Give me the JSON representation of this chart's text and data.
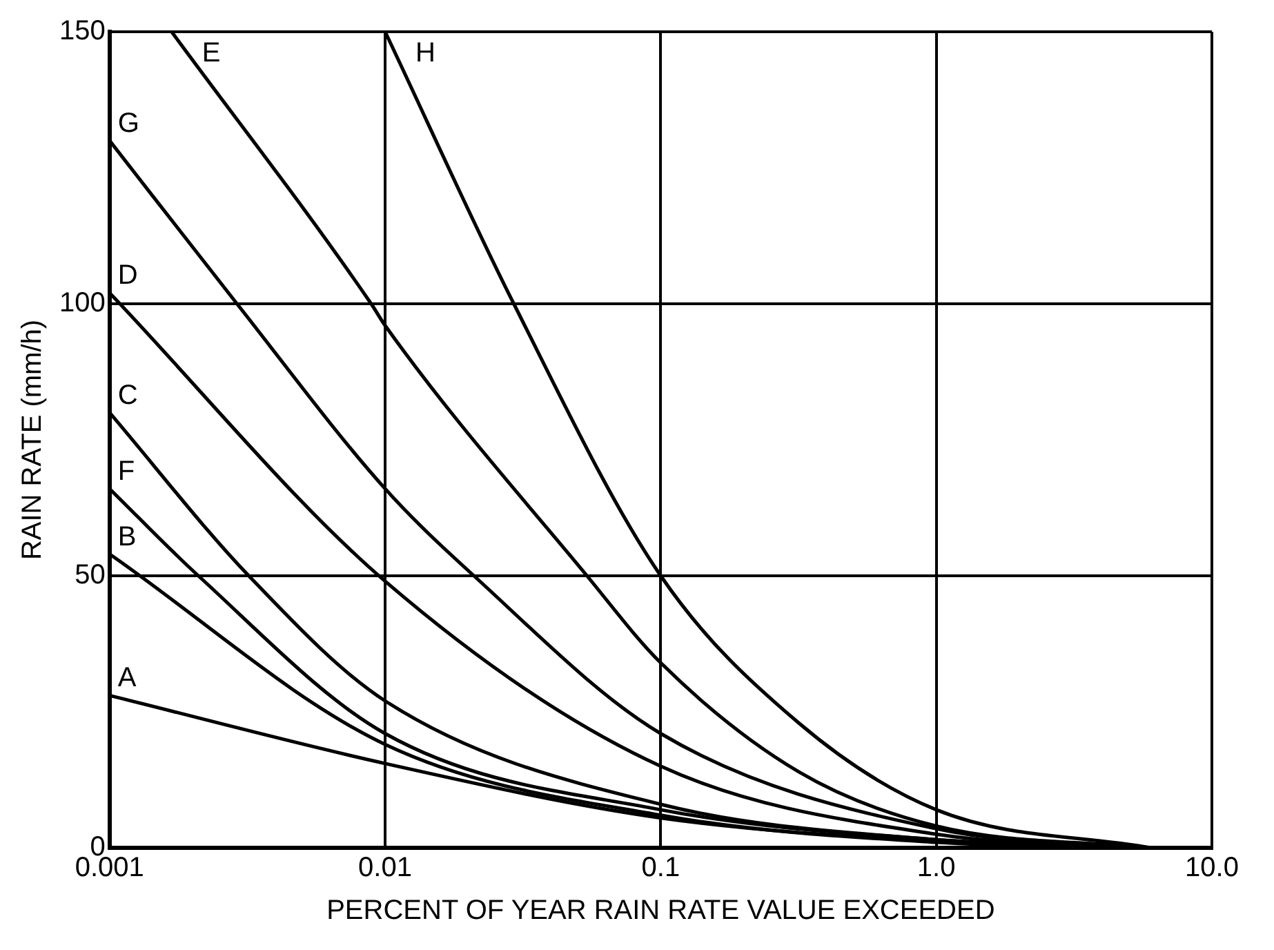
{
  "chart_data": {
    "type": "line",
    "xlabel": "PERCENT OF YEAR RAIN RATE VALUE EXCEEDED",
    "ylabel": "RAIN RATE (mm/h)",
    "log": "x",
    "xlim": [
      0.001,
      10
    ],
    "xticks": [
      0.001,
      0.01,
      0.1,
      {
        "value": 1,
        "label": "1.0"
      },
      {
        "value": 10,
        "label": "10.0"
      }
    ],
    "ylim": [
      0,
      150
    ],
    "yticks": [
      0,
      50,
      100,
      150
    ],
    "grid": true,
    "legend": false,
    "marker": "none",
    "line_style": "solid",
    "series": [
      {
        "name": "A",
        "color": "#000000",
        "x": [
          0.001,
          0.01,
          0.1,
          1,
          6
        ],
        "values": [
          28,
          15.5,
          5.5,
          1.2,
          0
        ]
      },
      {
        "name": "B",
        "color": "#000000",
        "x": [
          0.001,
          0.01,
          0.1,
          1,
          6
        ],
        "values": [
          54,
          19,
          6,
          1,
          0
        ]
      },
      {
        "name": "F",
        "color": "#000000",
        "x": [
          0.001,
          0.0021,
          0.01,
          0.1,
          1,
          6
        ],
        "values": [
          66,
          50,
          21,
          7,
          1.5,
          0
        ]
      },
      {
        "name": "C",
        "color": "#000000",
        "x": [
          0.001,
          0.0032,
          0.01,
          0.1,
          1,
          6
        ],
        "values": [
          80,
          50,
          27,
          8,
          1.5,
          0
        ]
      },
      {
        "name": "D",
        "color": "#000000",
        "x": [
          0.001,
          0.01,
          0.1,
          1,
          6
        ],
        "values": [
          102,
          49,
          15,
          2.5,
          0
        ]
      },
      {
        "name": "G",
        "color": "#000000",
        "x": [
          0.001,
          0.0029,
          0.01,
          0.021,
          0.1,
          1,
          6
        ],
        "values": [
          130,
          100,
          66,
          50,
          21,
          3.5,
          0
        ]
      },
      {
        "name": "E",
        "color": "#000000",
        "x": [
          0.00168,
          0.0089,
          0.01,
          0.054,
          0.1,
          0.316,
          1,
          6
        ],
        "values": [
          150,
          100,
          96,
          50,
          34,
          14,
          4,
          0
        ]
      },
      {
        "name": "H",
        "color": "#000000",
        "x": [
          0.01,
          0.0293,
          0.1,
          0.316,
          1,
          6
        ],
        "values": [
          150,
          100,
          50,
          23,
          7,
          0
        ]
      }
    ]
  }
}
